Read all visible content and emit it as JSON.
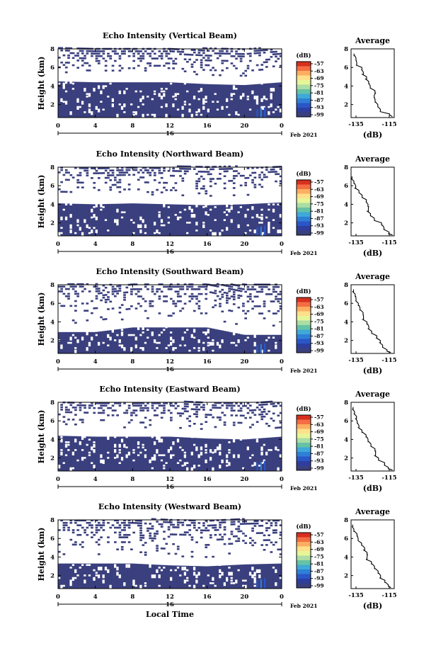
{
  "figure": {
    "date_label": "Feb 2021",
    "day_label": "16",
    "bottom_xlabel": "Local Time",
    "ylabel": "Height (km)",
    "avg_title": "Average",
    "avg_xlabel": "(dB)",
    "colorbar_unit": "(dB)",
    "colorbar_ticks": [
      "-57",
      "-63",
      "-69",
      "-75",
      "-81",
      "-87",
      "-93",
      "-99"
    ],
    "colorbar_colors": [
      "#d7301f",
      "#f46d43",
      "#fdae61",
      "#fee08b",
      "#e6f598",
      "#abdda4",
      "#66c2a5",
      "#3fa9d8",
      "#2f7fd6",
      "#2a56c7",
      "#2e3e9e",
      "#3a3f7e"
    ]
  },
  "chart_data": [
    {
      "type": "heatmap",
      "title": "Echo Intensity (Vertical Beam)",
      "xlabel": "",
      "ylabel": "Height (km)",
      "xticks": [
        "0",
        "4",
        "8",
        "12",
        "16",
        "20",
        "0"
      ],
      "xlim": [
        0,
        24
      ],
      "yticks": [
        "2",
        "4",
        "6",
        "8"
      ],
      "ylim": [
        0.6,
        8
      ],
      "clim": [
        -99,
        -57
      ],
      "description_series": {
        "name": "lower echo layer top (km)",
        "x": [
          0,
          4,
          8,
          12,
          16,
          20,
          24
        ],
        "values": [
          4.5,
          4.4,
          4.4,
          4.4,
          4.2,
          4.1,
          4.4
        ]
      },
      "average_profile": {
        "title": "Average",
        "xlabel": "(dB)",
        "xticks": [
          "-135",
          "-115"
        ],
        "xlim": [
          -138,
          -112
        ],
        "yticks": [
          "2",
          "4",
          "6",
          "8"
        ],
        "ylim": [
          0.6,
          8
        ],
        "height": [
          0.7,
          1.0,
          1.5,
          2.0,
          2.5,
          3.0,
          3.5,
          4.0,
          4.5,
          5.0,
          5.5,
          6.0,
          6.5,
          7.0,
          7.5
        ],
        "values": [
          -113,
          -115,
          -120,
          -122,
          -123,
          -124,
          -124,
          -126,
          -127,
          -129,
          -131,
          -132,
          -134,
          -135,
          -136
        ]
      }
    },
    {
      "type": "heatmap",
      "title": "Echo Intensity (Northward Beam)",
      "xlabel": "",
      "ylabel": "Height (km)",
      "xticks": [
        "0",
        "4",
        "8",
        "12",
        "16",
        "20",
        "0"
      ],
      "xlim": [
        0,
        24
      ],
      "yticks": [
        "2",
        "4",
        "6",
        "8"
      ],
      "ylim": [
        0.6,
        8
      ],
      "clim": [
        -99,
        -57
      ],
      "description_series": {
        "name": "lower echo layer top (km)",
        "x": [
          0,
          4,
          8,
          12,
          16,
          20,
          24
        ],
        "values": [
          4.1,
          4.0,
          4.1,
          4.0,
          3.9,
          4.0,
          4.2
        ]
      },
      "average_profile": {
        "title": "Average",
        "xlabel": "(dB)",
        "xticks": [
          "-135",
          "-115"
        ],
        "xlim": [
          -138,
          -112
        ],
        "yticks": [
          "2",
          "4",
          "6",
          "8"
        ],
        "ylim": [
          0.6,
          8
        ],
        "height": [
          0.7,
          1.0,
          1.5,
          2.0,
          2.5,
          3.0,
          3.5,
          4.0,
          4.5,
          5.0,
          5.5,
          6.0,
          6.5,
          7.0
        ],
        "values": [
          -113,
          -115,
          -118,
          -120,
          -124,
          -126,
          -127,
          -128,
          -129,
          -131,
          -133,
          -135,
          -136,
          -137
        ]
      }
    },
    {
      "type": "heatmap",
      "title": "Echo Intensity (Southward Beam)",
      "xlabel": "",
      "ylabel": "Height (km)",
      "xticks": [
        "0",
        "4",
        "8",
        "12",
        "16",
        "20",
        "0"
      ],
      "xlim": [
        0,
        24
      ],
      "yticks": [
        "2",
        "4",
        "6",
        "8"
      ],
      "ylim": [
        0.6,
        8
      ],
      "clim": [
        -99,
        -57
      ],
      "description_series": {
        "name": "lower echo layer top (km)",
        "x": [
          0,
          4,
          8,
          12,
          16,
          20,
          24
        ],
        "values": [
          2.9,
          2.9,
          3.4,
          3.4,
          3.4,
          2.6,
          2.6
        ]
      },
      "average_profile": {
        "title": "Average",
        "xlabel": "(dB)",
        "xticks": [
          "-135",
          "-115"
        ],
        "xlim": [
          -138,
          -112
        ],
        "yticks": [
          "2",
          "4",
          "6",
          "8"
        ],
        "ylim": [
          0.6,
          8
        ],
        "height": [
          0.7,
          1.0,
          1.5,
          2.0,
          2.5,
          3.0,
          3.5,
          4.0,
          4.5,
          5.0,
          5.5,
          6.0,
          6.5,
          7.0,
          7.5
        ],
        "values": [
          -114,
          -116,
          -119,
          -121,
          -123,
          -125,
          -127,
          -128,
          -130,
          -131,
          -133,
          -134,
          -135,
          -136,
          -137
        ]
      }
    },
    {
      "type": "heatmap",
      "title": "Echo Intensity (Eastward Beam)",
      "xlabel": "",
      "ylabel": "Height (km)",
      "xticks": [
        "0",
        "4",
        "8",
        "12",
        "16",
        "20",
        "0"
      ],
      "xlim": [
        0,
        24
      ],
      "yticks": [
        "2",
        "4",
        "6",
        "8"
      ],
      "ylim": [
        0.6,
        8
      ],
      "clim": [
        -99,
        -57
      ],
      "description_series": {
        "name": "lower echo layer top (km)",
        "x": [
          0,
          4,
          8,
          12,
          16,
          20,
          24
        ],
        "values": [
          4.4,
          4.3,
          4.3,
          4.3,
          4.1,
          4.0,
          4.3
        ]
      },
      "average_profile": {
        "title": "Average",
        "xlabel": "(dB)",
        "xticks": [
          "-135",
          "-115"
        ],
        "xlim": [
          -138,
          -112
        ],
        "yticks": [
          "2",
          "4",
          "6",
          "8"
        ],
        "ylim": [
          0.6,
          8
        ],
        "height": [
          0.7,
          1.0,
          1.5,
          2.0,
          2.5,
          3.0,
          3.5,
          4.0,
          4.5,
          5.0,
          5.5,
          6.0,
          6.5,
          7.0,
          7.5
        ],
        "values": [
          -113,
          -115,
          -118,
          -121,
          -123,
          -124,
          -126,
          -128,
          -129,
          -131,
          -133,
          -134,
          -135,
          -136,
          -137
        ]
      }
    },
    {
      "type": "heatmap",
      "title": "Echo Intensity (Westward Beam)",
      "xlabel": "Local Time",
      "ylabel": "Height (km)",
      "xticks": [
        "0",
        "4",
        "8",
        "12",
        "16",
        "20",
        "0"
      ],
      "xlim": [
        0,
        24
      ],
      "yticks": [
        "2",
        "4",
        "6",
        "8"
      ],
      "ylim": [
        0.6,
        8
      ],
      "clim": [
        -99,
        -57
      ],
      "description_series": {
        "name": "lower echo layer top (km)",
        "x": [
          0,
          4,
          8,
          12,
          16,
          20,
          24
        ],
        "values": [
          3.3,
          3.3,
          3.3,
          3.1,
          3.0,
          3.2,
          3.3
        ]
      },
      "average_profile": {
        "title": "Average",
        "xlabel": "(dB)",
        "xticks": [
          "-135",
          "-115"
        ],
        "xlim": [
          -138,
          -112
        ],
        "yticks": [
          "2",
          "4",
          "6",
          "8"
        ],
        "ylim": [
          0.6,
          8
        ],
        "height": [
          0.7,
          1.0,
          1.5,
          2.0,
          2.5,
          3.0,
          3.5,
          4.0,
          4.5,
          5.0,
          5.5,
          6.0,
          6.5,
          7.0,
          7.5
        ],
        "values": [
          -114,
          -116,
          -118,
          -120,
          -122,
          -124,
          -126,
          -128,
          -129,
          -130,
          -132,
          -134,
          -135,
          -136,
          -137
        ]
      }
    }
  ]
}
